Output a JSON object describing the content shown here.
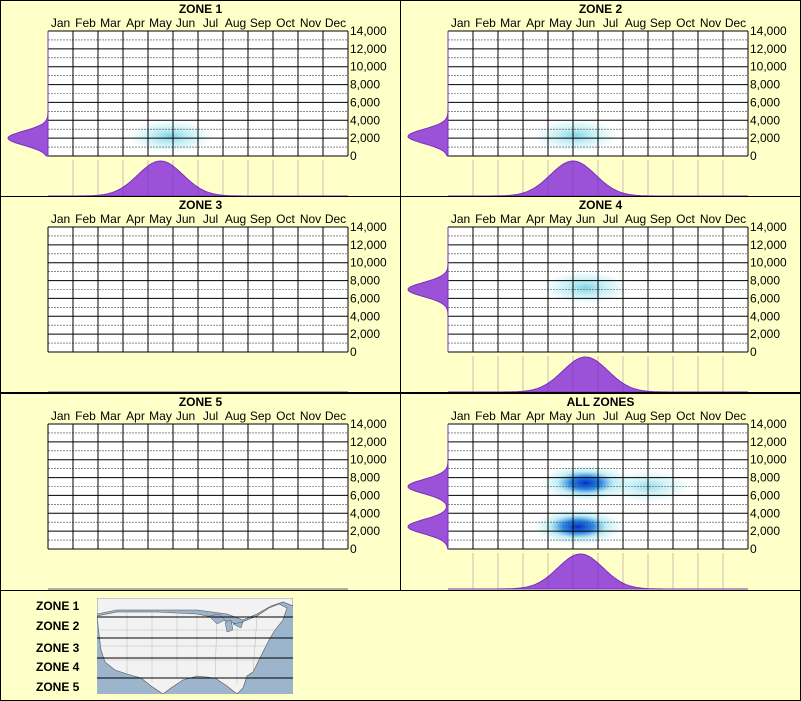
{
  "months": [
    "Jan",
    "Feb",
    "Mar",
    "Apr",
    "May",
    "Jun",
    "Jul",
    "Aug",
    "Sep",
    "Oct",
    "Nov",
    "Dec"
  ],
  "yticks": [
    "0",
    "2,000",
    "4,000",
    "6,000",
    "8,000",
    "10,000",
    "12,000",
    "14,000"
  ],
  "colors": {
    "background": "#ffffc8",
    "grid": "#000000",
    "density_fill": "#9c52d8",
    "density_stroke": "#7b2fc0",
    "heat_light": "#9ee6ef",
    "heat_dark": "#0030c0"
  },
  "chart_data": [
    {
      "type": "heatmap",
      "title": "ZONE 1",
      "ylim": [
        0,
        14000
      ],
      "blobs": [
        {
          "month": 5.4,
          "elevation": 2200,
          "intensity": 0.35
        }
      ],
      "elevation_peaks": [
        {
          "elevation": 2000,
          "weight": 1.0
        }
      ],
      "month_peak": 5.0
    },
    {
      "type": "heatmap",
      "title": "ZONE 2",
      "ylim": [
        0,
        14000
      ],
      "blobs": [
        {
          "month": 5.6,
          "elevation": 2300,
          "intensity": 0.3
        }
      ],
      "elevation_peaks": [
        {
          "elevation": 2200,
          "weight": 1.0
        }
      ],
      "month_peak": 5.5
    },
    {
      "type": "heatmap",
      "title": "ZONE 3",
      "ylim": [
        0,
        14000
      ],
      "blobs": [],
      "elevation_peaks": [],
      "month_peak": null
    },
    {
      "type": "heatmap",
      "title": "ZONE 4",
      "ylim": [
        0,
        14000
      ],
      "blobs": [
        {
          "month": 6.0,
          "elevation": 7200,
          "intensity": 0.35
        }
      ],
      "elevation_peaks": [
        {
          "elevation": 7000,
          "weight": 1.0
        }
      ],
      "month_peak": 6.0
    },
    {
      "type": "heatmap",
      "title": "ZONE 5",
      "ylim": [
        0,
        14000
      ],
      "blobs": [],
      "elevation_peaks": [],
      "month_peak": null
    },
    {
      "type": "heatmap",
      "title": "ALL ZONES",
      "ylim": [
        0,
        14000
      ],
      "blobs": [
        {
          "month": 6.0,
          "elevation": 7400,
          "intensity": 1.0
        },
        {
          "month": 5.7,
          "elevation": 2500,
          "intensity": 1.0
        },
        {
          "month": 8.5,
          "elevation": 7000,
          "intensity": 0.15
        }
      ],
      "elevation_peaks": [
        {
          "elevation": 7000,
          "weight": 1.0
        },
        {
          "elevation": 2500,
          "weight": 1.0
        }
      ],
      "month_peak": 5.8
    }
  ],
  "legend": {
    "zones": [
      "ZONE 1",
      "ZONE 2",
      "ZONE 3",
      "ZONE 4",
      "ZONE 5"
    ]
  }
}
